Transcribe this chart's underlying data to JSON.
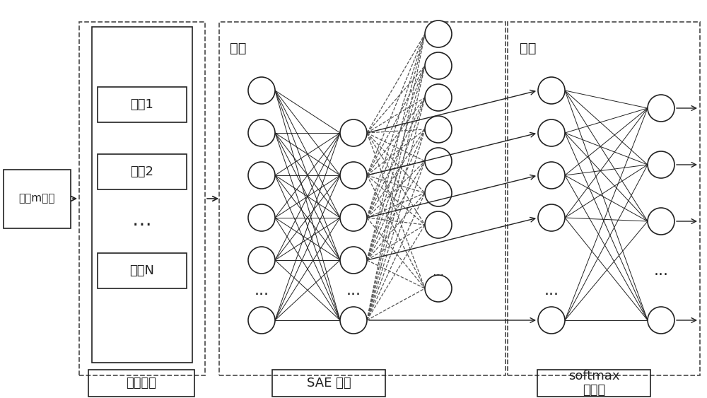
{
  "bg_color": "#ffffff",
  "line_color": "#222222",
  "node_edge_color": "#222222",
  "labels": {
    "noisy_input": "含噭m序列",
    "sample_construction": "样本构造",
    "sae_network": "SAE 网络",
    "softmax_line1": "softmax",
    "softmax_line2": "分类器",
    "sample1": "样本1",
    "sample2": "样本2",
    "sampleN": "样本N",
    "input_label": "输入",
    "output_label": "输出",
    "dots": "⋯"
  },
  "fontsize_main": 13,
  "fontsize_small": 11,
  "fontsize_label": 14
}
